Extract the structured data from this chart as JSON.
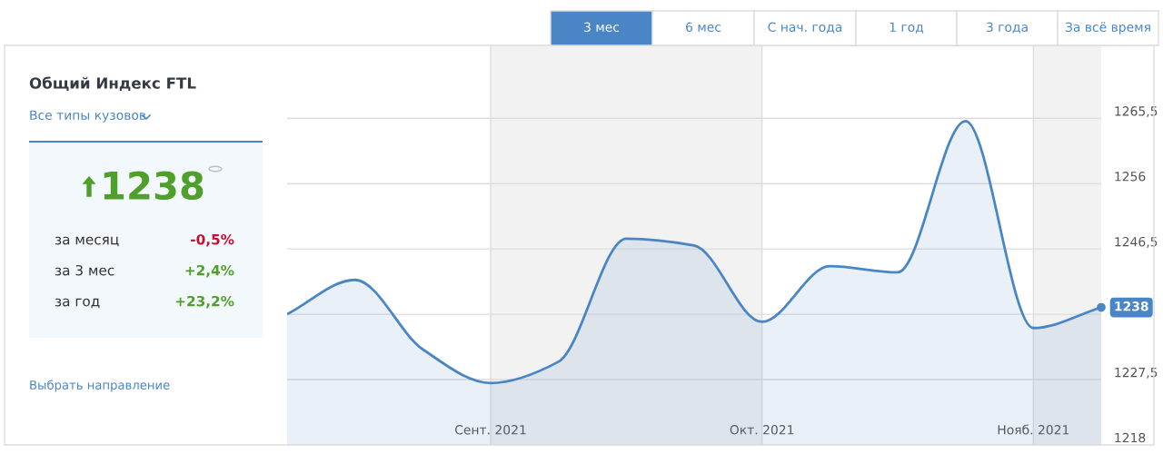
{
  "chart_data": {
    "type": "area",
    "title": "Общий Индекс FTL",
    "x": [
      "2021-08-09",
      "2021-08-16",
      "2021-08-23",
      "2021-08-30",
      "2021-09-06",
      "2021-09-13",
      "2021-09-20",
      "2021-09-27",
      "2021-10-04",
      "2021-10-11",
      "2021-10-18",
      "2021-10-25",
      "2021-11-01"
    ],
    "series": [
      {
        "color": "#4a86c5",
        "values": [
          1237.0,
          1242.0,
          1231.9,
          1227.0,
          1230.1,
          1248.0,
          1247.0,
          1235.9,
          1244.0,
          1243.1,
          1265.1,
          1235.0,
          1238
        ],
        "value_labels": [
          null,
          null,
          null,
          null,
          null,
          null,
          null,
          null,
          null,
          null,
          null,
          null,
          "1238"
        ]
      }
    ],
    "xlim": [
      "2021-08-09",
      "2021-11-01"
    ],
    "xticks": [
      {
        "value": "2021-08-30",
        "label": "Сент. 2021"
      },
      {
        "value": "2021-09-27",
        "label": "Окт. 2021"
      },
      {
        "value": "2021-10-25",
        "label": "Нояб. 2021"
      }
    ],
    "ylim": [
      1218,
      1276.1
    ],
    "yticks": [
      1218,
      {
        "value": 1227.5,
        "label": "1227,5"
      },
      {
        "value": 1237,
        "label": null
      },
      {
        "value": 1246.5,
        "label": "1246,5"
      },
      1256,
      {
        "value": 1265.5,
        "label": "1265,5"
      }
    ],
    "grid": true,
    "bands": [
      {
        "axis": "x",
        "from": "2021-08-30",
        "to": "2021-09-27",
        "color": "#f2f2f2"
      },
      {
        "axis": "x",
        "from": "2021-10-25",
        "to": "2021-11-01",
        "color": "#f2f2f2"
      }
    ],
    "annotations": [
      "Все типы кузовов",
      "1238",
      "за месяц",
      "-0,5%",
      "за 3 мес",
      "+2,4%",
      "за год",
      "+23,2%",
      "Выбрать направление",
      "3 мес",
      "6 мес",
      "С нач. года",
      "1 год",
      "3 года",
      "За всё время"
    ]
  }
}
